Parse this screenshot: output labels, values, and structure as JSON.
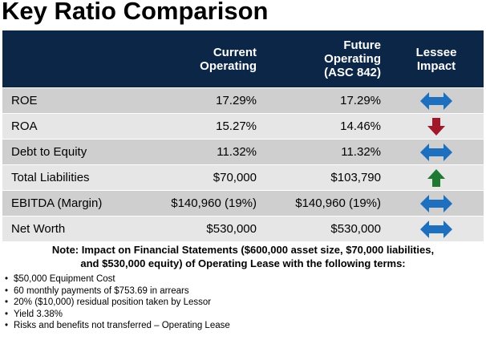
{
  "title": "Key Ratio Comparison",
  "table": {
    "headers": {
      "metric": "",
      "current": [
        "Current",
        "Operating"
      ],
      "future": [
        "Future",
        "Operating",
        "(ASC 842)"
      ],
      "impact": [
        "Lessee",
        "Impact"
      ]
    },
    "rows": [
      {
        "metric": "ROE",
        "current": "17.29%",
        "future": "17.29%",
        "impact": "neutral-arrow-icon"
      },
      {
        "metric": "ROA",
        "current": "15.27%",
        "future": "14.46%",
        "impact": "down-arrow-icon"
      },
      {
        "metric": "Debt to Equity",
        "current": "11.32%",
        "future": "11.32%",
        "impact": "neutral-arrow-icon"
      },
      {
        "metric": "Total Liabilities",
        "current": "$70,000",
        "future": "$103,790",
        "impact": "up-arrow-icon"
      },
      {
        "metric": "EBITDA (Margin)",
        "current": "$140,960 (19%)",
        "future": "$140,960 (19%)",
        "impact": "neutral-arrow-icon"
      },
      {
        "metric": "Net Worth",
        "current": "$530,000",
        "future": "$530,000",
        "impact": "neutral-arrow-icon"
      }
    ]
  },
  "note": {
    "line1": "Note:  Impact on Financial Statements ($600,000 asset size, $70,000 liabilities,",
    "line2": "and $530,000 equity) of Operating Lease with the following terms:"
  },
  "terms": [
    "$50,000 Equipment Cost",
    "60 monthly payments of $753.69 in arrears",
    "20% ($10,000) residual position taken by Lessor",
    "Yield 3.38%",
    "Risks and benefits not transferred – Operating Lease"
  ],
  "colors": {
    "header_bg": "#0b2646",
    "neutral": "#1f6fbf",
    "down": "#a0182a",
    "up": "#1e7a33"
  }
}
